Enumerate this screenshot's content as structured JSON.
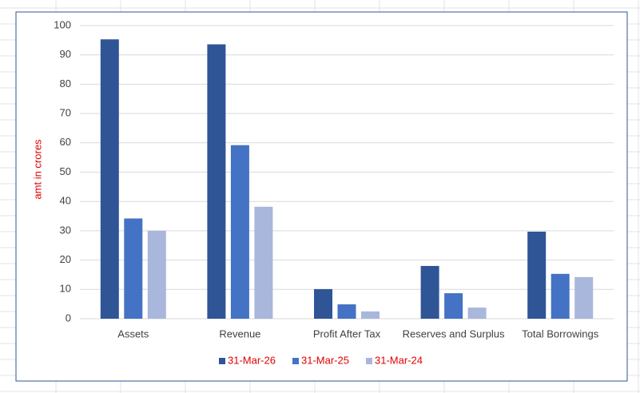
{
  "chart_data": {
    "type": "bar",
    "y_label": "amt in crores",
    "categories": [
      "Assets",
      "Revenue",
      "Profit After Tax",
      "Reserves and Surplus",
      "Total Borrowings"
    ],
    "series": [
      {
        "name": "31-Mar-26",
        "color": "#2f5597",
        "values": [
          95.3,
          93.6,
          10.1,
          18.0,
          29.7
        ]
      },
      {
        "name": "31-Mar-25",
        "color": "#4472c4",
        "values": [
          34.2,
          59.2,
          4.9,
          8.7,
          15.3
        ]
      },
      {
        "name": "31-Mar-24",
        "color": "#a9b7dc",
        "values": [
          30.0,
          38.2,
          2.5,
          3.8,
          14.2
        ]
      }
    ],
    "ylim": [
      0,
      100
    ],
    "yticks": [
      0,
      10,
      20,
      30,
      40,
      50,
      60,
      70,
      80,
      90,
      100
    ],
    "grid": true,
    "legend": "bottom"
  }
}
